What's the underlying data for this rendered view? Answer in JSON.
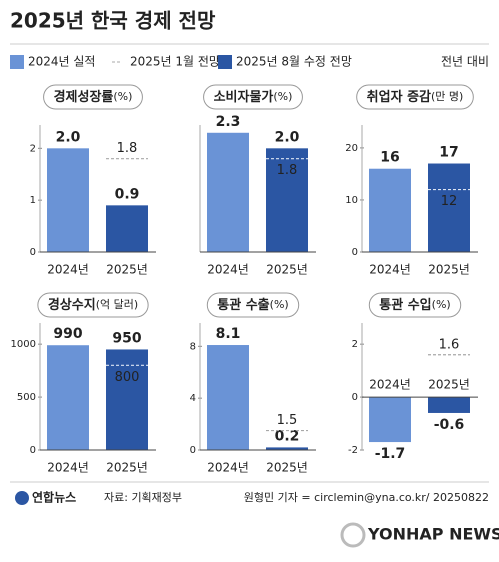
{
  "title": "2025년 한국 경제 전망",
  "legend": {
    "items": [
      {
        "name": "2024년 실적",
        "color": "#6a93d6"
      },
      {
        "name": "2025년 1월 전망",
        "color": "#a8a8a8"
      },
      {
        "name": "2025년 8월 수정 전망",
        "color": "#2b56a3"
      }
    ],
    "note": "전년 대비"
  },
  "chart_data": [
    {
      "type": "bar",
      "title": "경제성장률",
      "unit": "(%)",
      "categories": [
        "2024년",
        "2025년"
      ],
      "values": [
        2,
        0.9
      ],
      "value_labels": [
        "2.0",
        "0.9"
      ],
      "forecast": [
        null,
        1.8
      ],
      "ylim": [
        0,
        2.45
      ],
      "yticks": [
        0,
        1,
        2
      ]
    },
    {
      "type": "bar",
      "title": "소비자물가",
      "unit": "(%)",
      "categories": [
        "2024년",
        "2025년"
      ],
      "values": [
        2.3,
        2
      ],
      "value_labels": [
        "2.3",
        "2.0"
      ],
      "forecast": [
        null,
        1.8
      ],
      "ylim": [
        0,
        2.45
      ]
    },
    {
      "type": "bar",
      "title": "취업자 증감",
      "unit": "(만 명)",
      "categories": [
        "2024년",
        "2025년"
      ],
      "values": [
        16,
        17
      ],
      "forecast": [
        null,
        12
      ],
      "ylim": [
        0,
        24.4
      ],
      "yticks": [
        0,
        10,
        20
      ]
    },
    {
      "type": "bar",
      "title": "경상수지",
      "unit": "(억 달러)",
      "categories": [
        "2024년",
        "2025년"
      ],
      "values": [
        990,
        950
      ],
      "forecast": [
        null,
        800
      ],
      "ylim": [
        0,
        1200
      ],
      "yticks": [
        0,
        500,
        1000
      ]
    },
    {
      "type": "bar",
      "title": "통관 수출",
      "unit": "(%)",
      "categories": [
        "2024년",
        "2025년"
      ],
      "values": [
        8.1,
        0.2
      ],
      "forecast": [
        null,
        1.5
      ],
      "ylim": [
        0,
        9.8
      ],
      "yticks": [
        0,
        4,
        8
      ]
    },
    {
      "type": "bar",
      "title": "통관 수입",
      "unit": "(%)",
      "categories": [
        "2024년",
        "2025년"
      ],
      "values": [
        -1.7,
        -0.6
      ],
      "forecast": [
        null,
        1.6
      ],
      "ylim": [
        -2,
        2.8
      ],
      "yticks": [
        -2,
        0,
        2
      ]
    }
  ],
  "footer": {
    "logo": "연합뉴스",
    "source": "자료: 기획재정부",
    "credit": "원형민 기자 = circlemin@yna.co.kr/ 20250822",
    "watermark": "YONHAP NEWS"
  }
}
